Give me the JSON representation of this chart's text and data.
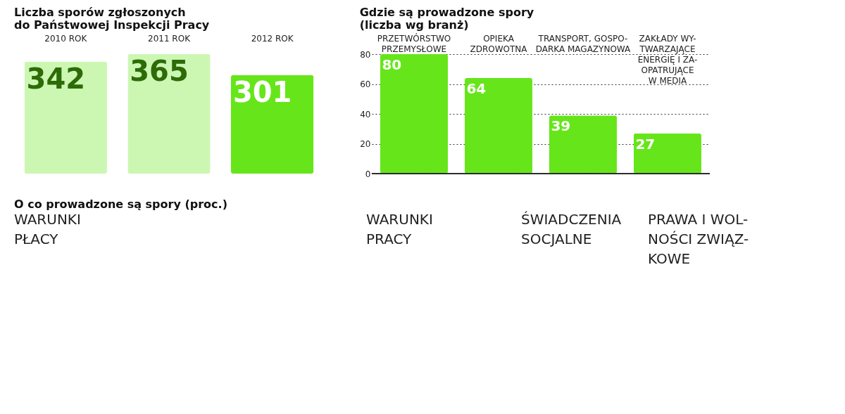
{
  "chart_data": [
    {
      "type": "bar",
      "title": "Liczba sporów zgłoszonych\ndo Państwowej Inspekcji Pracy",
      "categories": [
        "2010 ROK",
        "2011 ROK",
        "2012 ROK"
      ],
      "values": [
        342,
        365,
        301
      ],
      "colors": [
        "#ccf7b3",
        "#ccf7b3",
        "#66e61a"
      ],
      "data_labels": true,
      "tick_labels": "x"
    },
    {
      "type": "bar",
      "title": "Gdzie są prowadzone spory\n(liczba wg branż)",
      "categories": [
        "PRZETWÓRSTWO\nPRZEMYSŁOWE",
        "OPIEKA\nZDROWOTNA",
        "TRANSPORT, GOSPO-\nDARKA MAGAZYNOWA",
        "ZAKŁADY WY-\nTWARZAJĄCE\nENERGIĘ I ZA-\nOPATRUJĄCE\nW MEDIA"
      ],
      "values": [
        80,
        64,
        39,
        27
      ],
      "color": "#66e61a",
      "ylim": [
        0,
        80
      ],
      "yticks": [
        0,
        20,
        40,
        60,
        80
      ],
      "grid": "y",
      "data_labels": true
    },
    {
      "type": "other",
      "title": "O co prowadzone są spory (proc.)",
      "annotations": [
        "WARUNKI\nPŁACY",
        "WARUNKI\nPRACY",
        "ŚWIADCZENIA\nSOCJALNE",
        "PRAWA I WOL-\nNOŚCI ZWIĄZ-\nKOWE"
      ]
    }
  ]
}
